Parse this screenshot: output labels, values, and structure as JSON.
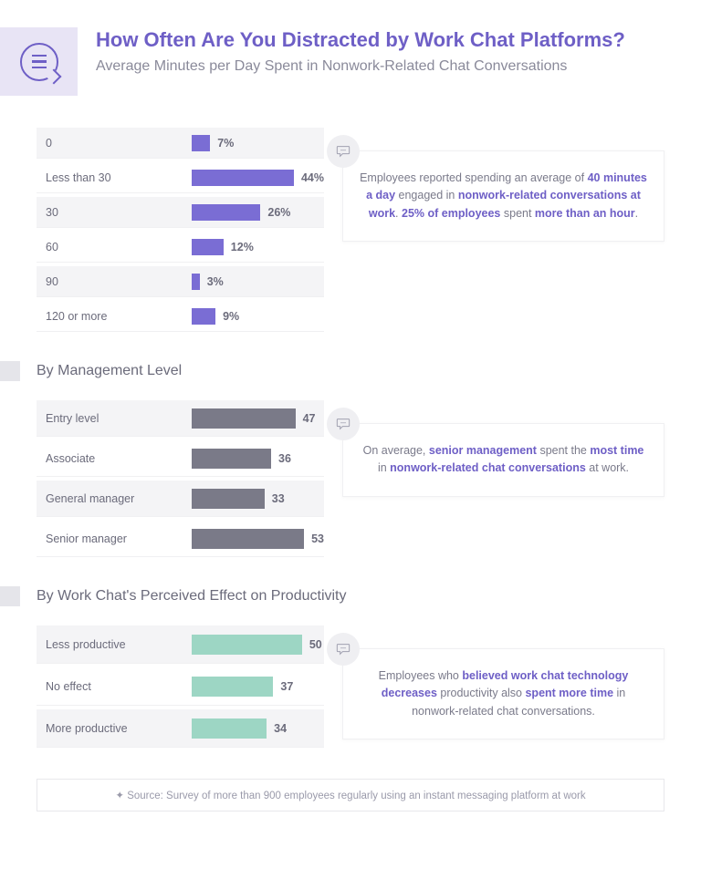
{
  "header": {
    "title": "How Often Are You Distracted by Work Chat Platforms?",
    "subtitle": "Average Minutes per Day Spent in Nonwork-Related Chat Conversations"
  },
  "colors": {
    "purple": "#7a6dd4",
    "gray": "#7a7a88",
    "teal": "#9dd6c4",
    "row_bg": "#f4f4f6"
  },
  "chart1": {
    "type": "bar",
    "bar_color": "#7a6dd4",
    "max_pct": 50,
    "rows": [
      {
        "label": "0",
        "value": 7,
        "display": "7%"
      },
      {
        "label": "Less than 30",
        "value": 44,
        "display": "44%"
      },
      {
        "label": "30",
        "value": 26,
        "display": "26%"
      },
      {
        "label": "60",
        "value": 12,
        "display": "12%"
      },
      {
        "label": "90",
        "value": 3,
        "display": "3%"
      },
      {
        "label": "120 or more",
        "value": 9,
        "display": "9%"
      }
    ],
    "callout": {
      "pre": "Employees reported spending an average of ",
      "b1": "40 minutes a day",
      "mid1": " engaged in ",
      "b2": "nonwork-related conversations at work",
      "mid2": ". ",
      "b3": "25% of employees",
      "mid3": " spent ",
      "b4": "more than an hour",
      "post": "."
    }
  },
  "section2_title": "By Management Level",
  "chart2": {
    "type": "bar",
    "bar_color": "#7a7a88",
    "max_val": 60,
    "rows": [
      {
        "label": "Entry level",
        "value": 47,
        "display": "47"
      },
      {
        "label": "Associate",
        "value": 36,
        "display": "36"
      },
      {
        "label": "General manager",
        "value": 33,
        "display": "33"
      },
      {
        "label": "Senior manager",
        "value": 53,
        "display": "53"
      }
    ],
    "callout": {
      "pre": "On average, ",
      "b1": "senior management",
      "mid1": " spent the ",
      "b2": "most time",
      "mid2": " in ",
      "b3": "nonwork-related chat conversations",
      "post": " at work."
    }
  },
  "section3_title": "By Work Chat's Perceived Effect on Productivity",
  "chart3": {
    "type": "bar",
    "bar_color": "#9dd6c4",
    "max_val": 60,
    "rows": [
      {
        "label": "Less productive",
        "value": 50,
        "display": "50"
      },
      {
        "label": "No effect",
        "value": 37,
        "display": "37"
      },
      {
        "label": "More productive",
        "value": 34,
        "display": "34"
      }
    ],
    "callout": {
      "pre": "Employees who ",
      "b1": "believed work chat technology decreases",
      "mid1": " productivity also ",
      "b2": "spent more time",
      "post": " in nonwork-related chat conversations."
    }
  },
  "source": "✦ Source: Survey of more than 900 employees regularly using an instant messaging platform at work"
}
